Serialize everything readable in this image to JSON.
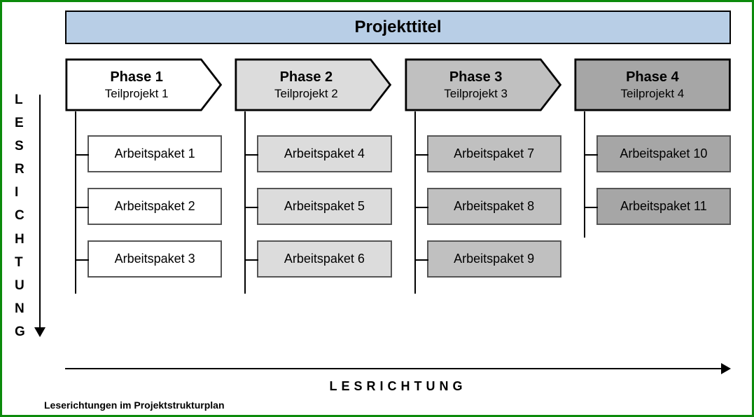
{
  "frame": {
    "border_color": "#0b8a0b",
    "title_bg": "#b8cee6",
    "background": "#ffffff"
  },
  "title": "Projekttitel",
  "vertical_label": "LESRICHTUNG",
  "horizontal_label": "LESRICHTUNG",
  "caption": "Leserichtungen im Projektstrukturplan",
  "phases": [
    {
      "name": "Phase 1",
      "sub": "Teilprojekt 1",
      "fill": "#ffffff",
      "packages": [
        "Arbeitspaket 1",
        "Arbeitspaket 2",
        "Arbeitspaket 3"
      ]
    },
    {
      "name": "Phase 2",
      "sub": "Teilprojekt 2",
      "fill": "#dcdcdc",
      "packages": [
        "Arbeitspaket 4",
        "Arbeitspaket 5",
        "Arbeitspaket 6"
      ]
    },
    {
      "name": "Phase 3",
      "sub": "Teilprojekt 3",
      "fill": "#c0c0c0",
      "packages": [
        "Arbeitspaket 7",
        "Arbeitspaket 8",
        "Arbeitspaket 9"
      ]
    },
    {
      "name": "Phase 4",
      "sub": "Teilprojekt 4",
      "fill": "#a6a6a6",
      "packages": [
        "Arbeitspaket 10",
        "Arbeitspaket 11"
      ]
    }
  ],
  "style": {
    "package_border": "#555555",
    "text_color": "#000000",
    "chevron_stroke": "#000000",
    "line_h_3pkgs": 260,
    "line_h_2pkgs": 180,
    "font_family": "Arial"
  }
}
